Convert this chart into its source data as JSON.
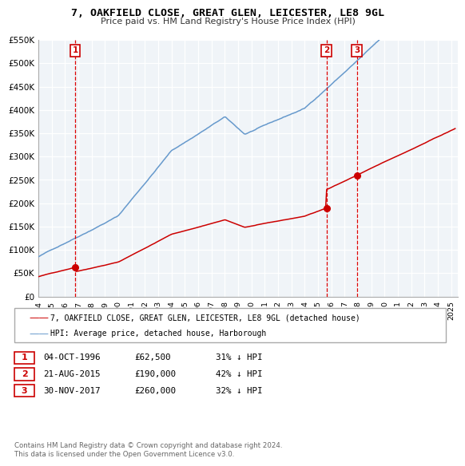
{
  "title": "7, OAKFIELD CLOSE, GREAT GLEN, LEICESTER, LE8 9GL",
  "subtitle": "Price paid vs. HM Land Registry's House Price Index (HPI)",
  "xmin": 1994.0,
  "xmax": 2025.5,
  "ymin": 0,
  "ymax": 550000,
  "yticks": [
    0,
    50000,
    100000,
    150000,
    200000,
    250000,
    300000,
    350000,
    400000,
    450000,
    500000,
    550000
  ],
  "ytick_labels": [
    "£0",
    "£50K",
    "£100K",
    "£150K",
    "£200K",
    "£250K",
    "£300K",
    "£350K",
    "£400K",
    "£450K",
    "£500K",
    "£550K"
  ],
  "xticks": [
    1994,
    1995,
    1996,
    1997,
    1998,
    1999,
    2000,
    2001,
    2002,
    2003,
    2004,
    2005,
    2006,
    2007,
    2008,
    2009,
    2010,
    2011,
    2012,
    2013,
    2014,
    2015,
    2016,
    2017,
    2018,
    2019,
    2020,
    2021,
    2022,
    2023,
    2024,
    2025
  ],
  "sale_dates": [
    1996.76,
    2015.64,
    2017.92
  ],
  "sale_prices": [
    62500,
    190000,
    260000
  ],
  "sale_labels": [
    "1",
    "2",
    "3"
  ],
  "vline_color": "#dd0000",
  "sale_dot_color": "#cc0000",
  "hpi_line_color": "#6699cc",
  "sale_line_color": "#cc0000",
  "legend_label_sale": "7, OAKFIELD CLOSE, GREAT GLEN, LEICESTER, LE8 9GL (detached house)",
  "legend_label_hpi": "HPI: Average price, detached house, Harborough",
  "table_rows": [
    {
      "num": "1",
      "date": "04-OCT-1996",
      "price": "£62,500",
      "hpi": "31% ↓ HPI"
    },
    {
      "num": "2",
      "date": "21-AUG-2015",
      "price": "£190,000",
      "hpi": "42% ↓ HPI"
    },
    {
      "num": "3",
      "date": "30-NOV-2017",
      "price": "£260,000",
      "hpi": "32% ↓ HPI"
    }
  ],
  "footnote1": "Contains HM Land Registry data © Crown copyright and database right 2024.",
  "footnote2": "This data is licensed under the Open Government Licence v3.0.",
  "plot_bg_color": "#f0f4f8"
}
